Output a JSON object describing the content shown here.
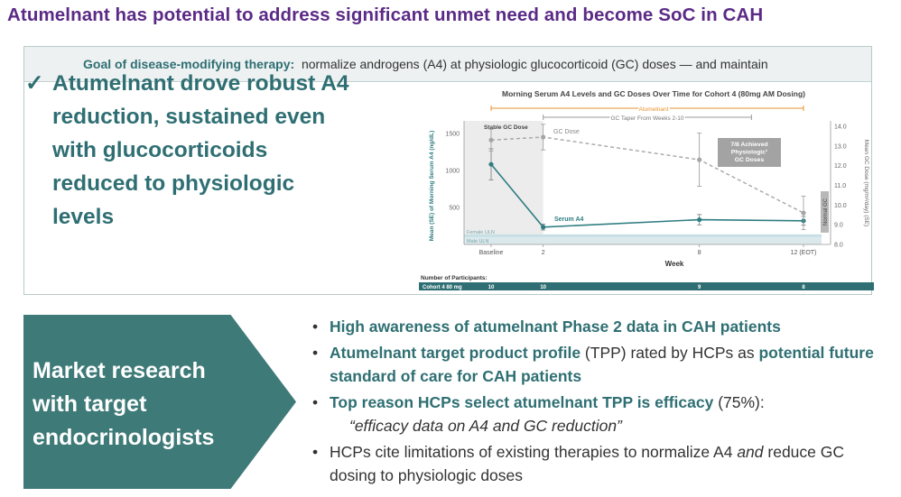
{
  "title": "Atumelnant has potential to address significant unmet need and become SoC in CAH",
  "goal": {
    "label": "Goal of disease-modifying therapy:",
    "text": "normalize androgens (A4) at physiologic glucocorticoid (GC) doses — and maintain"
  },
  "headline": {
    "check": "✓",
    "text": "Atumelnant drove robust A4 reduction, sustained even with glucocorticoids reduced to physiologic levels"
  },
  "chart_data": {
    "type": "line",
    "title": "Morning Serum A4 Levels and GC Doses Over Time for Cohort 4 (80mg AM Dosing)",
    "xlabel": "Week",
    "ylabel": "Mean (SE) of Morning Serum A4 (ng/dL)",
    "y2label": "Mean GC Dose (mg/m²/day) (SE)",
    "x_tick_labels": [
      "Baseline",
      "2",
      "8",
      "12 (EOT)"
    ],
    "x_weeks": [
      0,
      2,
      8,
      12
    ],
    "ylim": [
      0,
      1600
    ],
    "y_ticks": [
      500,
      1000,
      1500
    ],
    "y2lim": [
      8.0,
      14.0
    ],
    "y2_ticks": [
      "8.0",
      "9.0",
      "10.0",
      "11.0",
      "12.0",
      "13.0",
      "14.0"
    ],
    "series": [
      {
        "name": "Serum A4",
        "axis": "left",
        "color": "#2f7d82",
        "values": [
          1085,
          235,
          335,
          320
        ],
        "se": [
          210,
          40,
          70,
          60
        ]
      },
      {
        "name": "GC Dose",
        "axis": "right",
        "color": "#a6a6a6",
        "dash": true,
        "values": [
          13.3,
          13.45,
          12.3,
          9.6
        ],
        "se": [
          0.55,
          0.65,
          1.35,
          0.85
        ]
      }
    ],
    "bands": {
      "stable": "Stable GC Dose",
      "female_uln": "Female ULN",
      "male_uln": "Male ULN",
      "normal_gc": "Normal GC"
    },
    "timeline": {
      "drug": "Atumelnant",
      "taper": "GC Taper From Weeks 2-10",
      "drug_color": "#e8912d",
      "taper_color": "#9a9a9a"
    },
    "callout": "7/8 Achieved Physiologic¹ GC Doses",
    "participants": {
      "header": "Number of Participants:",
      "row_label": "Cohort 4 80 mg",
      "counts": [
        "10",
        "10",
        "9",
        "8"
      ]
    },
    "grid": false,
    "legend": "inline labels"
  },
  "market": {
    "arrow_text": "Market research with target endocrinologists",
    "bullets": [
      {
        "hl": "High awareness of atumelnant Phase 2 data in CAH patients"
      },
      {
        "hl": "Atumelnant target product profile",
        "rest": " (TPP) rated by HCPs as ",
        "hl2": "potential future standard of care for CAH patients"
      },
      {
        "hl": "Top reason HCPs select atumelnant TPP is efficacy",
        "rest": " (75%):",
        "quote": "“efficacy data on A4 and GC reduction”"
      },
      {
        "plain": "HCPs cite limitations of existing therapies to normalize A4 ",
        "em": "and",
        "plain2": " reduce GC dosing to physiologic doses"
      }
    ]
  },
  "colors": {
    "title": "#5b2a86",
    "teal": "#2f6f73",
    "arrow_fill": "#3e7a78",
    "goal_bg": "#eef1f1"
  }
}
